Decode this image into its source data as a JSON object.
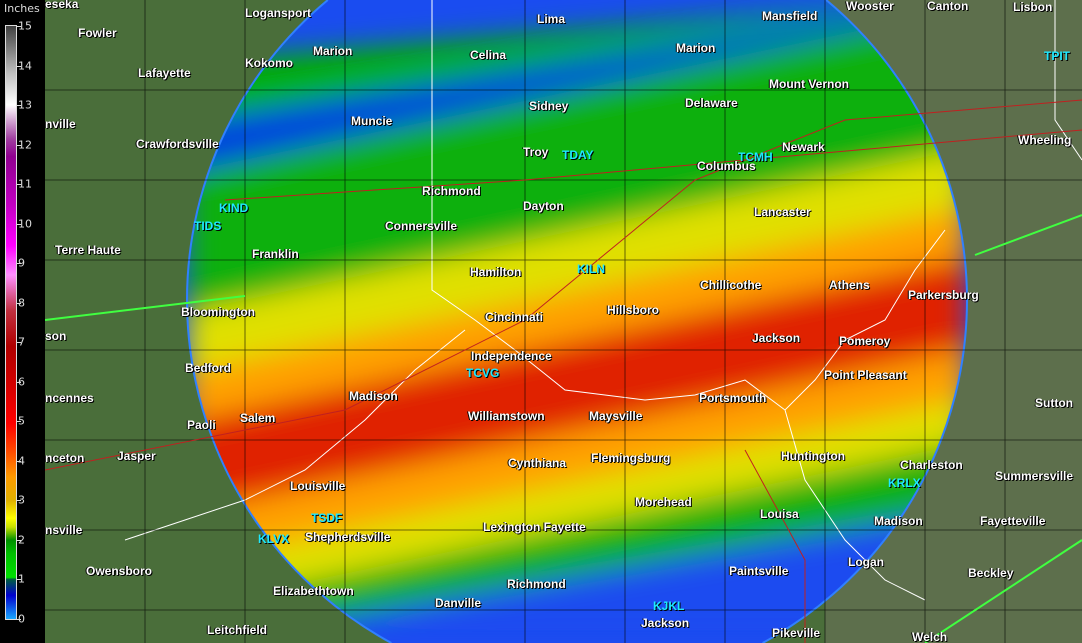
{
  "legend": {
    "title": "Inches",
    "labels": [
      "15",
      "14",
      "13",
      "12",
      "11",
      "10",
      "9",
      "8",
      "7",
      "6",
      "5",
      "4",
      "3",
      "2",
      "1",
      "0"
    ],
    "colors": {
      "low": "#19a8ff",
      "mid": "#00c000",
      "high": "#ff0000",
      "max": "#404040"
    }
  },
  "map": {
    "background": "#4a6e3a",
    "cities": [
      "eseka",
      "Logansport",
      "Fowler",
      "Lafayette",
      "Kokomo",
      "Marion",
      "Celina",
      "Lima",
      "Mansfield",
      "Wooster",
      "Canton",
      "Lisbon",
      "Marion",
      "Mount Vernon",
      "Delaware",
      "Sidney",
      "Muncie",
      "Crawfordsville",
      "nville",
      "Troy",
      "Newark",
      "Columbus",
      "Wheeling",
      "Richmond",
      "Dayton",
      "Lancaster",
      "Connersville",
      "Terre Haute",
      "Franklin",
      "Hamilton",
      "Chillicothe",
      "Athens",
      "Parkersburg",
      "Bloomington",
      "Cincinnati",
      "Hillsboro",
      "son",
      "Jackson",
      "Pomeroy",
      "Independence",
      "Bedford",
      "Point Pleasant",
      "Madison",
      "ncennes",
      "Salem",
      "Paoli",
      "Williamstown",
      "Maysville",
      "Portsmouth",
      "Sutton",
      "nceton",
      "Jasper",
      "Cynthiana",
      "Flemingsburg",
      "Huntington",
      "Charleston",
      "Summersville",
      "Louisville",
      "Morehead",
      "Louisa",
      "Madison",
      "Fayetteville",
      "nsville",
      "Shepherdsville",
      "Lexington Fayette",
      "Paintsville",
      "Logan",
      "Beckley",
      "Owensboro",
      "Elizabethtown",
      "Richmond",
      "Danville",
      "Jackson",
      "Leitchfield",
      "Pikeville",
      "Welch"
    ],
    "radar_sites": [
      "KIND",
      "TIDS",
      "TDAY",
      "TCMH",
      "KILN",
      "TCVG",
      "KLVX",
      "TSDF",
      "KRLX",
      "KJKL",
      "TPIT"
    ]
  }
}
